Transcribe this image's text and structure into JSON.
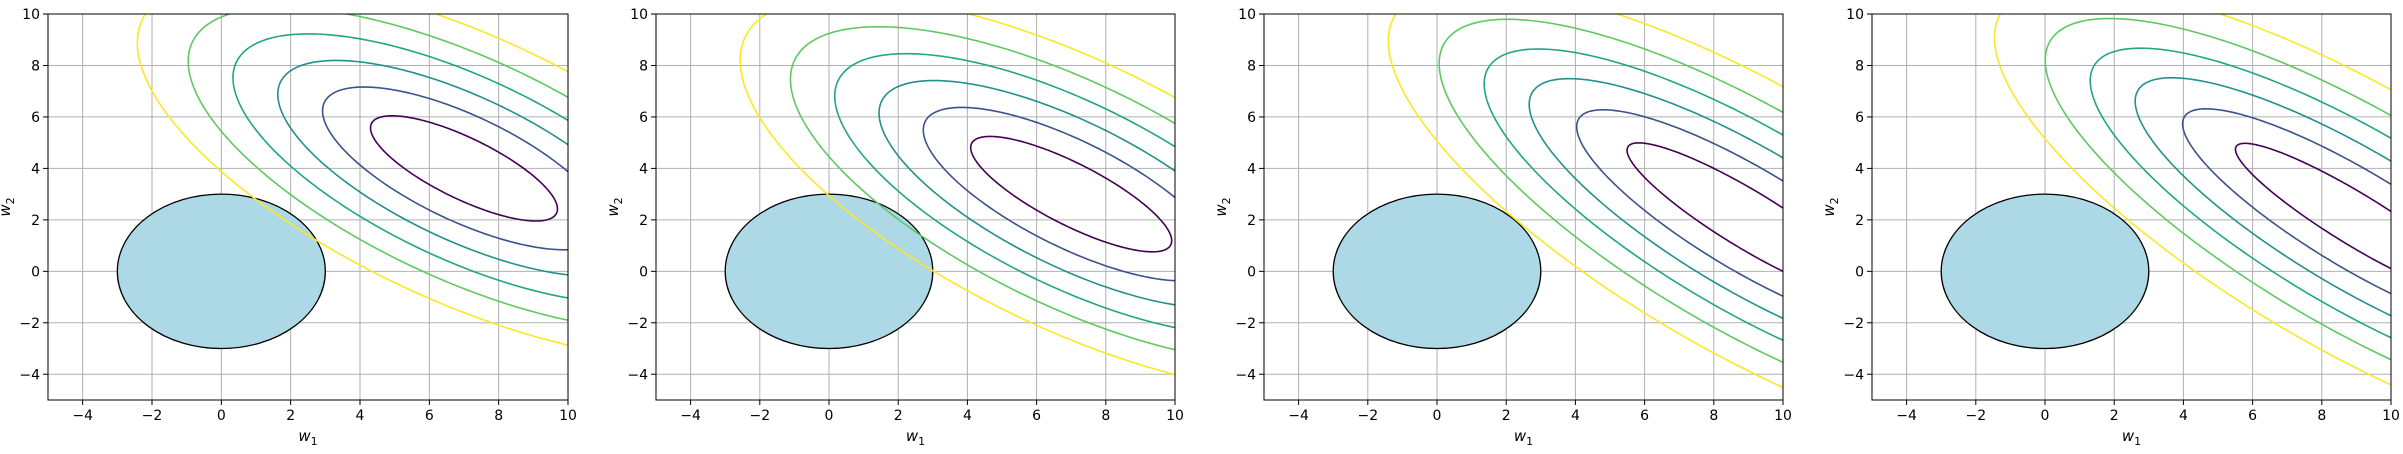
{
  "chart_data": [
    {
      "type": "contour",
      "xlabel": "w",
      "xlabel_sub": "1",
      "ylabel": "w",
      "ylabel_sub": "2",
      "xlim": [
        -5,
        10
      ],
      "ylim": [
        -5,
        10
      ],
      "xticks": [
        -4,
        -2,
        0,
        2,
        4,
        6,
        8,
        10
      ],
      "yticks": [
        -4,
        -2,
        0,
        2,
        4,
        6,
        8,
        10
      ],
      "grid": true,
      "constraint_circle": {
        "center": [
          0,
          0
        ],
        "radius": 3,
        "color": "#add8e6"
      },
      "contours": {
        "center": [
          7,
          4
        ],
        "angle_deg": 35,
        "semi_axes": [
          [
            3.2,
            1.1
          ],
          [
            4.8,
            1.9
          ],
          [
            6.3,
            2.6
          ],
          [
            7.8,
            3.3
          ],
          [
            9.3,
            4.0
          ],
          [
            11.0,
            4.8
          ]
        ],
        "colors": [
          "#440154",
          "#3b528b",
          "#21918c",
          "#21a585",
          "#5ec962",
          "#fde725"
        ]
      }
    },
    {
      "type": "contour",
      "xlabel": "w",
      "xlabel_sub": "1",
      "ylabel": "w",
      "ylabel_sub": "2",
      "xlim": [
        -5,
        10
      ],
      "ylim": [
        -5,
        10
      ],
      "xticks": [
        -4,
        -2,
        0,
        2,
        4,
        6,
        8,
        10
      ],
      "yticks": [
        -4,
        -2,
        0,
        2,
        4,
        6,
        8,
        10
      ],
      "grid": true,
      "constraint_circle": {
        "center": [
          0,
          0
        ],
        "radius": 3,
        "color": "#add8e6"
      },
      "contours": {
        "center": [
          7,
          3
        ],
        "angle_deg": 36,
        "semi_axes": [
          [
            3.5,
            1.1
          ],
          [
            5.1,
            1.9
          ],
          [
            6.6,
            2.6
          ],
          [
            8.1,
            3.3
          ],
          [
            9.6,
            4.0
          ],
          [
            11.3,
            4.8
          ]
        ],
        "colors": [
          "#440154",
          "#3b528b",
          "#21918c",
          "#21a585",
          "#5ec962",
          "#fde725"
        ]
      }
    },
    {
      "type": "contour",
      "xlabel": "w",
      "xlabel_sub": "1",
      "ylabel": "w",
      "ylabel_sub": "2",
      "xlim": [
        -5,
        10
      ],
      "ylim": [
        -5,
        10
      ],
      "xticks": [
        -4,
        -2,
        0,
        2,
        4,
        6,
        8,
        10
      ],
      "yticks": [
        -4,
        -2,
        0,
        2,
        4,
        6,
        8,
        10
      ],
      "grid": true,
      "constraint_circle": {
        "center": [
          0,
          0
        ],
        "radius": 3,
        "color": "#add8e6"
      },
      "contours": {
        "center": [
          9,
          2
        ],
        "angle_deg": 40,
        "semi_axes": [
          [
            4.5,
            1.0
          ],
          [
            6.3,
            1.8
          ],
          [
            8.0,
            2.5
          ],
          [
            9.6,
            3.2
          ],
          [
            11.2,
            3.9
          ],
          [
            13.0,
            4.7
          ]
        ],
        "colors": [
          "#440154",
          "#3b528b",
          "#21918c",
          "#21a585",
          "#5ec962",
          "#fde725"
        ]
      }
    },
    {
      "type": "contour",
      "xlabel": "w",
      "xlabel_sub": "1",
      "ylabel": "w",
      "ylabel_sub": "2",
      "xlim": [
        -5,
        10
      ],
      "ylim": [
        -5,
        10
      ],
      "xticks": [
        -4,
        -2,
        0,
        2,
        4,
        6,
        8,
        10
      ],
      "yticks": [
        -4,
        -2,
        0,
        2,
        4,
        6,
        8,
        10
      ],
      "grid": true,
      "constraint_circle": {
        "center": [
          0,
          0
        ],
        "radius": 3,
        "color": "#add8e6"
      },
      "contours": {
        "center": [
          9,
          2
        ],
        "angle_deg": 40,
        "semi_axes": [
          [
            4.5,
            0.9
          ],
          [
            6.4,
            1.7
          ],
          [
            8.1,
            2.4
          ],
          [
            9.7,
            3.1
          ],
          [
            11.3,
            3.8
          ],
          [
            13.1,
            4.6
          ]
        ],
        "colors": [
          "#440154",
          "#3b528b",
          "#21918c",
          "#21a585",
          "#5ec962",
          "#fde725"
        ]
      }
    }
  ]
}
